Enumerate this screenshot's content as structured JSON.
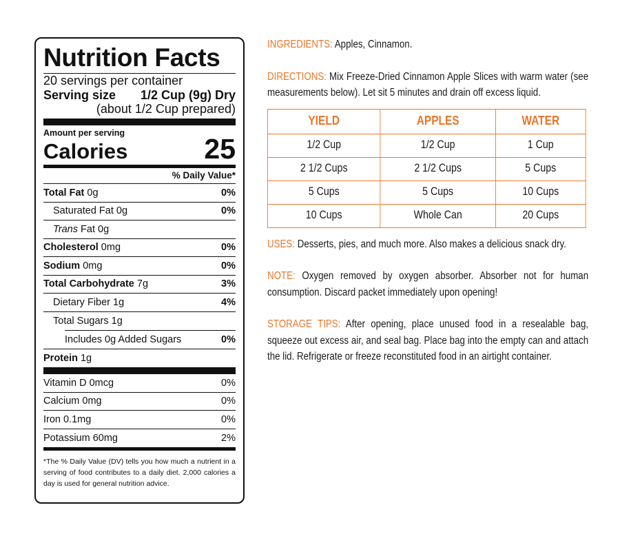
{
  "nutrition": {
    "title": "Nutrition Facts",
    "servings": "20 servings per container",
    "serving_size_label": "Serving size",
    "serving_size_value": "1/2 Cup (9g) Dry",
    "prepared": "(about 1/2 Cup prepared)",
    "amount_per_serving": "Amount per serving",
    "calories_label": "Calories",
    "calories_value": "25",
    "dv_header": "% Daily Value*",
    "total_fat": {
      "label": "Total Fat",
      "amount": "0g",
      "dv": "0%"
    },
    "saturated_fat": {
      "label": "Saturated Fat 0g",
      "dv": "0%"
    },
    "trans_fat": {
      "italic": "Trans",
      "rest": "Fat 0g"
    },
    "cholesterol": {
      "label": "Cholesterol",
      "amount": "0mg",
      "dv": "0%"
    },
    "sodium": {
      "label": "Sodium",
      "amount": "0mg",
      "dv": "0%"
    },
    "total_carb": {
      "label": "Total Carbohydrate",
      "amount": "7g",
      "dv": "3%"
    },
    "fiber": {
      "label": "Dietary Fiber 1g",
      "dv": "4%"
    },
    "sugars": {
      "label": "Total Sugars 1g"
    },
    "added_sugars": {
      "label": "Includes 0g Added Sugars",
      "dv": "0%"
    },
    "protein": {
      "label": "Protein",
      "amount": "1g"
    },
    "vitamins": [
      {
        "label": "Vitamin D 0mcg",
        "dv": "0%"
      },
      {
        "label": "Calcium 0mg",
        "dv": "0%"
      },
      {
        "label": "Iron 0.1mg",
        "dv": "0%"
      },
      {
        "label": "Potassium 60mg",
        "dv": "2%"
      }
    ],
    "footnote": "*The % Daily Value (DV) tells you how much a nutrient in a serving of food contributes to a daily diet. 2,000 calories a day is used for general nutrition advice."
  },
  "info": {
    "accent_color": "#e8772b",
    "ingredients": {
      "label": "INGREDIENTS:",
      "text": "Apples, Cinnamon."
    },
    "directions": {
      "label": "DIRECTIONS:",
      "text": "Mix Freeze-Dried Cinnamon Apple Slices with warm water (see measurements below). Let sit 5 minutes and drain off excess liquid."
    },
    "table": {
      "headers": [
        "YIELD",
        "APPLES",
        "WATER"
      ],
      "rows": [
        [
          "1/2 Cup",
          "1/2 Cup",
          "1 Cup"
        ],
        [
          "2 1/2 Cups",
          "2 1/2 Cups",
          "5 Cups"
        ],
        [
          "5 Cups",
          "5 Cups",
          "10 Cups"
        ],
        [
          "10 Cups",
          "Whole Can",
          "20 Cups"
        ]
      ]
    },
    "uses": {
      "label": "USES:",
      "text": "Desserts, pies, and much more. Also makes a delicious snack dry."
    },
    "note": {
      "label": "NOTE:",
      "text": "Oxygen removed by oxygen absorber. Absorber not for human consumption. Discard packet immediately upon opening!"
    },
    "storage": {
      "label": "STORAGE TIPS:",
      "text": "After opening, place unused food in a resealable bag, squeeze out excess air, and seal bag. Place bag into the empty can and attach the lid. Refrigerate or freeze reconstituted food in an airtight container."
    }
  }
}
